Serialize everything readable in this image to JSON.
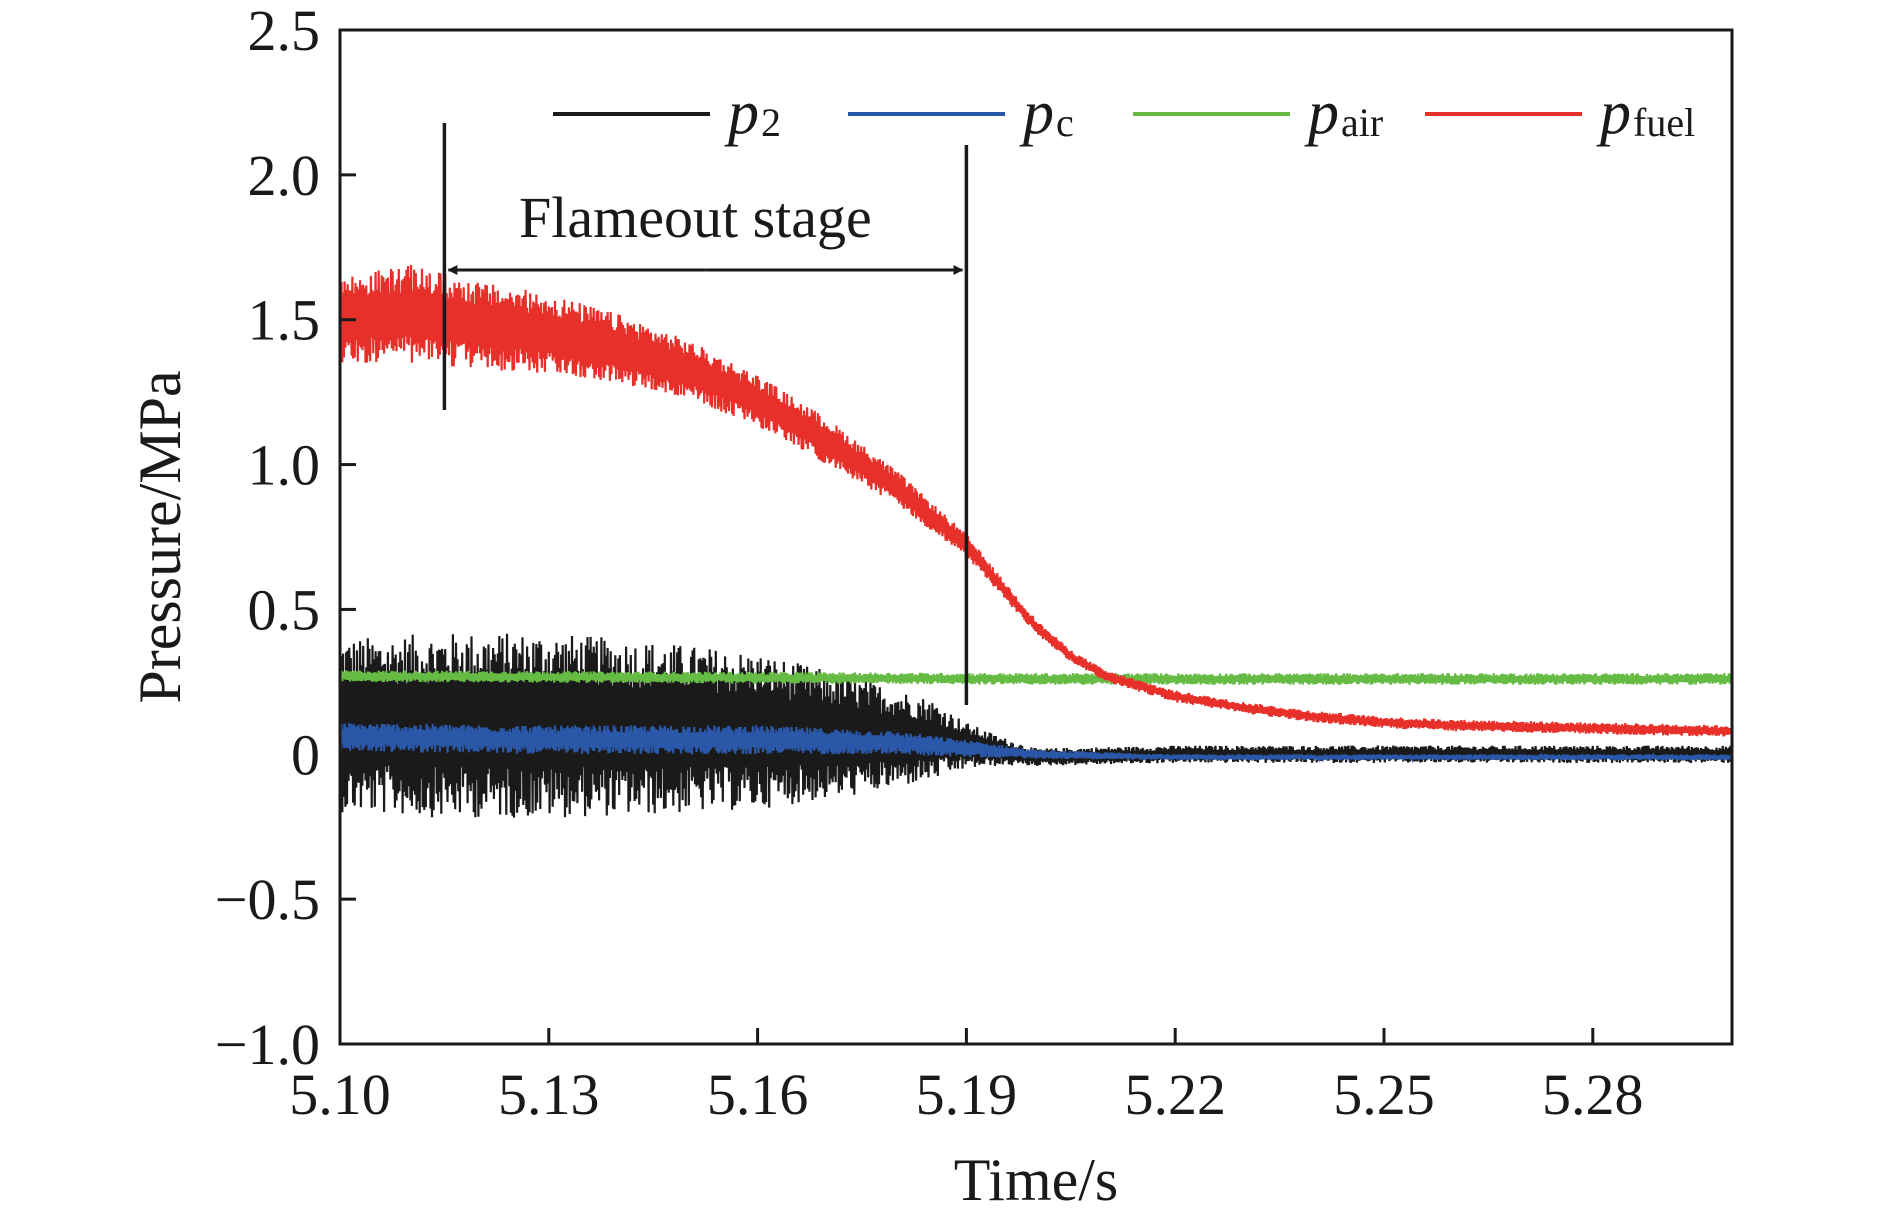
{
  "chart_data": {
    "type": "line",
    "title": "",
    "xlabel": "Time/s",
    "ylabel": "Pressure/MPa",
    "xlim": [
      5.1,
      5.3
    ],
    "ylim": [
      -1.0,
      2.5
    ],
    "xticks": [
      5.1,
      5.13,
      5.16,
      5.19,
      5.22,
      5.25,
      5.28
    ],
    "xtick_labels": [
      "5.10",
      "5.13",
      "5.16",
      "5.19",
      "5.22",
      "5.25",
      "5.28"
    ],
    "yticks": [
      2.5,
      2.0,
      1.5,
      1.0,
      0.5,
      0,
      -0.5,
      -1.0
    ],
    "ytick_labels": [
      "2.5",
      "2.0",
      "1.5",
      "1.0",
      "0.5",
      "0",
      "−0.5",
      "−1.0"
    ],
    "grid": false,
    "legend_position": "top",
    "annotation": {
      "text": "Flameout stage",
      "start": 5.115,
      "end": 5.19
    },
    "series": [
      {
        "name": "p2",
        "symbol": "p",
        "subscript": "2",
        "color": "#1a1a1a",
        "x": [
          5.1,
          5.115,
          5.13,
          5.145,
          5.16,
          5.175,
          5.185,
          5.19,
          5.195,
          5.2,
          5.22,
          5.25,
          5.28,
          5.3
        ],
        "y": [
          0.1,
          0.1,
          0.1,
          0.09,
          0.08,
          0.06,
          0.05,
          0.03,
          0.01,
          -0.01,
          0.0,
          0.0,
          0.0,
          0.0
        ],
        "noise": [
          0.3,
          0.32,
          0.32,
          0.3,
          0.27,
          0.2,
          0.14,
          0.08,
          0.05,
          0.03,
          0.03,
          0.03,
          0.03,
          0.03
        ]
      },
      {
        "name": "pc",
        "symbol": "p",
        "subscript": "c",
        "color": "#2a57a8",
        "x": [
          5.1,
          5.13,
          5.16,
          5.18,
          5.19,
          5.2,
          5.22,
          5.25,
          5.28,
          5.3
        ],
        "y": [
          0.06,
          0.05,
          0.05,
          0.04,
          0.02,
          0.0,
          -0.01,
          -0.01,
          -0.01,
          -0.01
        ],
        "noise": [
          0.05,
          0.05,
          0.05,
          0.04,
          0.03,
          0.015,
          0.01,
          0.01,
          0.01,
          0.01
        ]
      },
      {
        "name": "pair",
        "symbol": "p",
        "subscript": "air",
        "color": "#66bb44",
        "x": [
          5.1,
          5.15,
          5.2,
          5.25,
          5.3
        ],
        "y": [
          0.27,
          0.265,
          0.26,
          0.26,
          0.26
        ],
        "noise": [
          0.02,
          0.02,
          0.02,
          0.02,
          0.02
        ]
      },
      {
        "name": "pfuel",
        "symbol": "p",
        "subscript": "fuel",
        "color": "#e8302b",
        "x": [
          5.1,
          5.11,
          5.12,
          5.13,
          5.14,
          5.15,
          5.16,
          5.17,
          5.18,
          5.19,
          5.195,
          5.2,
          5.205,
          5.21,
          5.22,
          5.23,
          5.24,
          5.25,
          5.26,
          5.28,
          5.3
        ],
        "y": [
          1.5,
          1.52,
          1.48,
          1.45,
          1.4,
          1.33,
          1.22,
          1.08,
          0.92,
          0.72,
          0.58,
          0.44,
          0.34,
          0.27,
          0.2,
          0.16,
          0.13,
          0.11,
          0.1,
          0.09,
          0.08
        ],
        "noise": [
          0.15,
          0.17,
          0.15,
          0.14,
          0.12,
          0.1,
          0.09,
          0.08,
          0.06,
          0.04,
          0.03,
          0.025,
          0.02,
          0.02,
          0.02,
          0.02,
          0.02,
          0.02,
          0.02,
          0.02,
          0.02
        ]
      }
    ]
  }
}
